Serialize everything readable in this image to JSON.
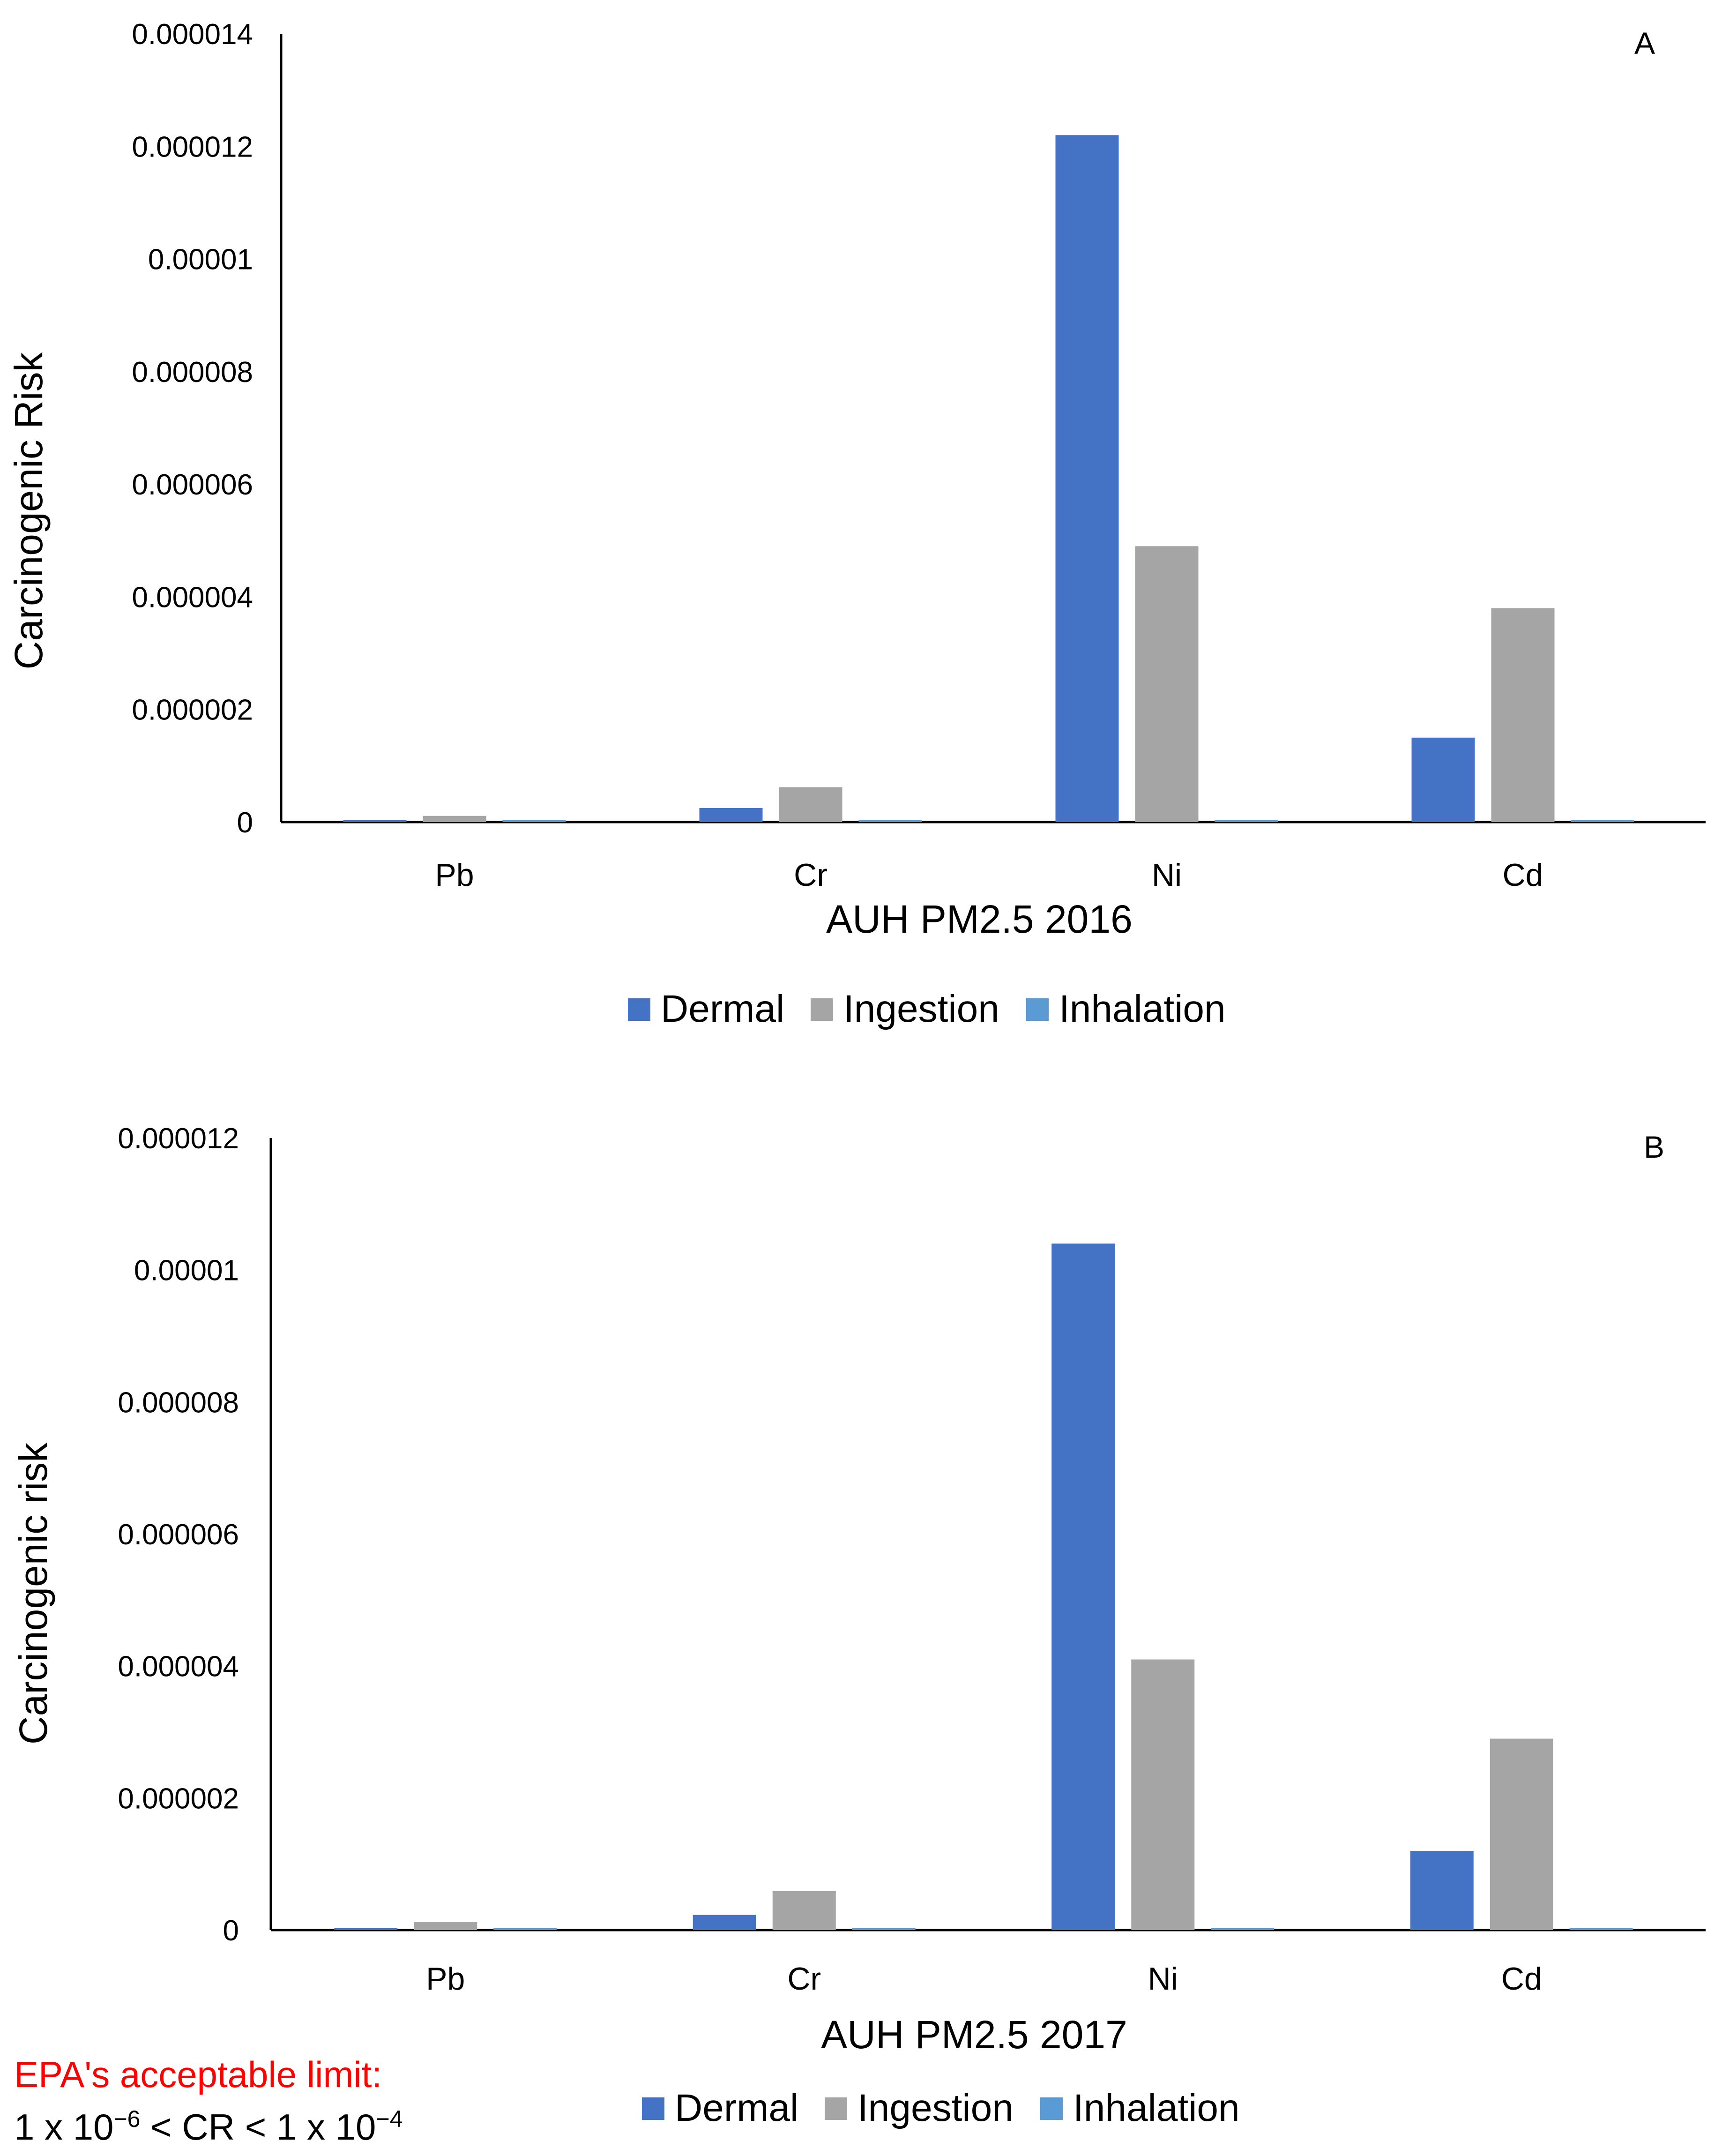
{
  "colors": {
    "Dermal": "#4472C4",
    "Ingestion": "#A5A5A5",
    "Inhalation": "#5B9BD5",
    "note_title": "#ff0000"
  },
  "chart_data": [
    {
      "type": "bar",
      "panel_label": "A",
      "xlabel": "AUH PM2.5 2016",
      "ylabel": "Carcinogenic Risk",
      "categories": [
        "Pb",
        "Cr",
        "Ni",
        "Cd"
      ],
      "series": [
        {
          "name": "Dermal",
          "values": [
            2e-08,
            2.5e-07,
            1.22e-05,
            1.5e-06
          ]
        },
        {
          "name": "Ingestion",
          "values": [
            1.1e-07,
            6.2e-07,
            4.9e-06,
            3.8e-06
          ]
        },
        {
          "name": "Inhalation",
          "values": [
            5e-09,
            5e-09,
            5e-09,
            5e-09
          ]
        }
      ],
      "ylim": [
        0,
        1.4e-05
      ],
      "yticks": [
        0,
        2e-06,
        4e-06,
        6e-06,
        8e-06,
        1e-05,
        1.2e-05,
        1.4e-05
      ],
      "ytick_labels": [
        "0",
        "0.000002",
        "0.000004",
        "0.000006",
        "0.000008",
        "0.00001",
        "0.000012",
        "0.000014"
      ],
      "legend": [
        "Dermal",
        "Ingestion",
        "Inhalation"
      ],
      "legend_position": "bottom"
    },
    {
      "type": "bar",
      "panel_label": "B",
      "xlabel": "AUH PM2.5 2017",
      "ylabel": "Carcinogenic risk",
      "categories": [
        "Pb",
        "Cr",
        "Ni",
        "Cd"
      ],
      "series": [
        {
          "name": "Dermal",
          "values": [
            2e-08,
            2.3e-07,
            1.04e-05,
            1.2e-06
          ]
        },
        {
          "name": "Ingestion",
          "values": [
            1.2e-07,
            5.9e-07,
            4.1e-06,
            2.9e-06
          ]
        },
        {
          "name": "Inhalation",
          "values": [
            5e-09,
            5e-09,
            5e-09,
            5e-09
          ]
        }
      ],
      "ylim": [
        0,
        1.2e-05
      ],
      "yticks": [
        0,
        2e-06,
        4e-06,
        6e-06,
        8e-06,
        1e-05,
        1.2e-05
      ],
      "ytick_labels": [
        "0",
        "0.000002",
        "0.000004",
        "0.000006",
        "0.000008",
        "0.00001",
        "0.000012"
      ],
      "legend": [
        "Dermal",
        "Ingestion",
        "Inhalation"
      ],
      "legend_position": "bottom"
    }
  ],
  "note": {
    "title": "EPA's acceptable limit:",
    "formula_prefix": "1 x 10",
    "exp_low": "−6",
    "formula_mid": " < CR < 1 x 10",
    "exp_high": "−4"
  }
}
